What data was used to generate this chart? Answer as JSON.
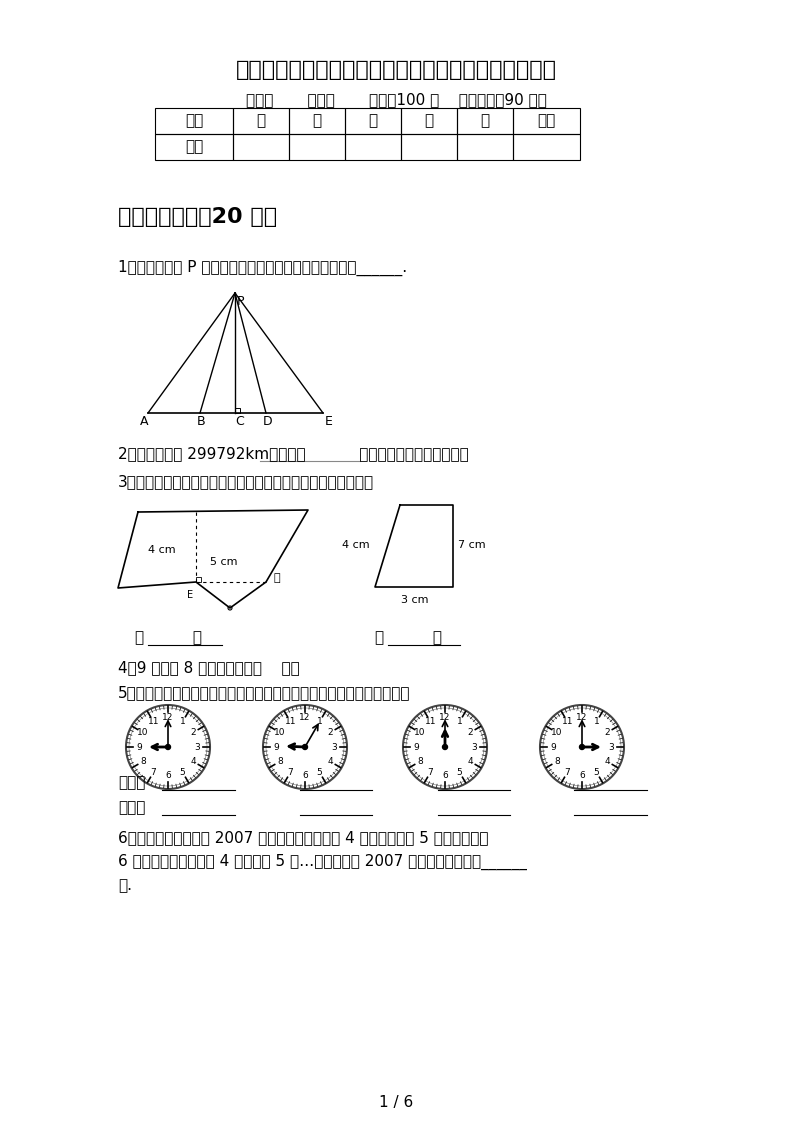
{
  "title": "最新部编版四年级数学下册期中试卷及答案（必考题）",
  "subtitle": "班级：       姓名：       满分：100 分    考试时间：90 分钟",
  "table_headers": [
    "题序",
    "一",
    "二",
    "三",
    "四",
    "五",
    "总分"
  ],
  "table_row": [
    "得分",
    "",
    "",
    "",
    "",
    "",
    ""
  ],
  "section1_title": "一、填空题。（20 分）",
  "q1": "1、图中，从点 P 引出的几条线段中，最短的一条线段是______.",
  "q2": "2、光每秒传播 299792km，约是（           ）万千米（保留一位小数）",
  "q3": "3、下面两个图形底边上的高分别是几厘米？在括号里填一填。",
  "q3_blank1": "（          ）",
  "q3_blank2": "（          ）",
  "q4": "4、9 个十和 8 个一合起来是（    ）。",
  "q5": "5、先写出每个钟面上的时间，再量出时针与分针所成的较小角的度数。",
  "q5_time_label": "时间：",
  "q5_degree_label": "度数：",
  "q6_line1": "6、有红、黄、蓝珠共 2007 个，按顺序先摆红珠 4 个，再摆黄珠 5 个，后摆蓝珠",
  "q6_line2": "6 个；接下去再摆红珠 4 个，黄珠 5 个…类推，在这 2007 个珠子中蓝珠共有______",
  "q6_line3": "个.",
  "bg_color": "#ffffff",
  "text_color": "#000000",
  "page_num": "1 / 6",
  "clock_times": [
    {
      "hour": 9,
      "minute": 0
    },
    {
      "hour": 9,
      "minute": 5
    },
    {
      "hour": 12,
      "minute": 0
    },
    {
      "hour": 3,
      "minute": 0
    }
  ]
}
